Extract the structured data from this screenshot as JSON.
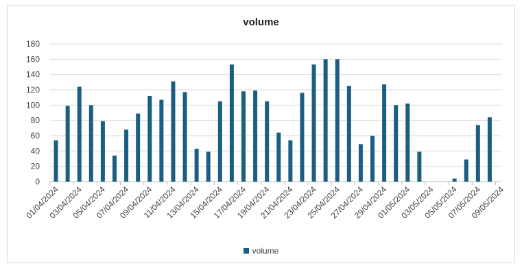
{
  "chart_data": {
    "type": "bar",
    "title": "volume",
    "xlabel": "",
    "ylabel": "",
    "ylim": [
      0,
      180
    ],
    "yticks": [
      0,
      20,
      40,
      60,
      80,
      100,
      120,
      140,
      160,
      180
    ],
    "grid": true,
    "legend": "bottom",
    "bar_color": "#1b5e82",
    "x_tick_labels": [
      "01/04/2024",
      "03/04/2024",
      "05/04/2024",
      "07/04/2024",
      "09/04/2024",
      "11/04/2024",
      "13/04/2024",
      "15/04/2024",
      "17/04/2024",
      "19/04/2024",
      "21/04/2024",
      "23/04/2024",
      "25/04/2024",
      "27/04/2024",
      "29/04/2024",
      "01/05/2024",
      "03/05/2024",
      "05/05/2024",
      "07/05/2024",
      "09/05/2024"
    ],
    "categories": [
      "01/04/2024",
      "02/04/2024",
      "03/04/2024",
      "04/04/2024",
      "05/04/2024",
      "06/04/2024",
      "07/04/2024",
      "08/04/2024",
      "09/04/2024",
      "10/04/2024",
      "11/04/2024",
      "12/04/2024",
      "13/04/2024",
      "14/04/2024",
      "15/04/2024",
      "16/04/2024",
      "17/04/2024",
      "18/04/2024",
      "19/04/2024",
      "20/04/2024",
      "21/04/2024",
      "22/04/2024",
      "23/04/2024",
      "24/04/2024",
      "25/04/2024",
      "26/04/2024",
      "27/04/2024",
      "28/04/2024",
      "29/04/2024",
      "30/04/2024",
      "01/05/2024",
      "02/05/2024",
      "03/05/2024",
      "04/05/2024",
      "05/05/2024",
      "06/05/2024",
      "07/05/2024",
      "08/05/2024"
    ],
    "series": [
      {
        "name": "volume",
        "values": [
          54,
          99,
          124,
          100,
          79,
          34,
          68,
          89,
          112,
          107,
          131,
          117,
          43,
          39,
          105,
          153,
          118,
          119,
          105,
          64,
          54,
          116,
          153,
          160,
          160,
          125,
          49,
          60,
          127,
          100,
          102,
          39,
          0,
          0,
          4,
          29,
          74,
          84
        ]
      }
    ]
  }
}
